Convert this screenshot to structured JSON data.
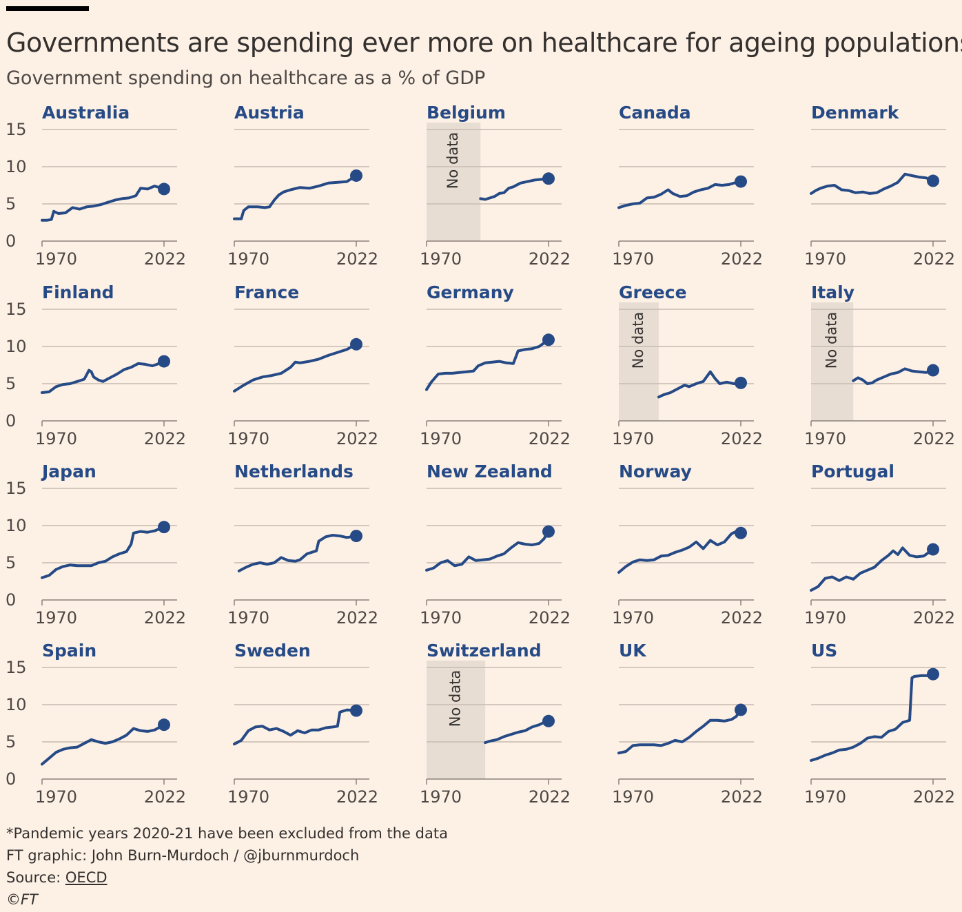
{
  "header": {
    "title": "Governments are spending ever more on healthcare for ageing populations",
    "subtitle": "Government spending on healthcare as a % of GDP"
  },
  "footer": {
    "note": "*Pandemic years 2020-21 have been excluded from the data",
    "credit": "FT graphic: John Burn-Murdoch / @jburnmurdoch",
    "source_label": "Source: ",
    "source_link": "OECD",
    "copyright": "©FT"
  },
  "colors": {
    "line": "#264a86",
    "background": "#fdf1e6",
    "gridline": "#c7bbb0",
    "no_data_band": "#e7ddd3"
  },
  "chart_data": {
    "type": "line",
    "layout": "small-multiples",
    "columns": 5,
    "x_range": [
      1970,
      2022
    ],
    "x_tick_labels": [
      "1970",
      "2022"
    ],
    "y_range": [
      0,
      15
    ],
    "y_ticks": [
      0,
      5,
      10,
      15
    ],
    "grid": true,
    "no_data_label": "No data",
    "end_marker": "dot",
    "panels": [
      {
        "name": "Australia",
        "x": [
          1970,
          1972,
          1974,
          1975,
          1977,
          1980,
          1983,
          1986,
          1989,
          1992,
          1995,
          1998,
          2001,
          2004,
          2007,
          2010,
          2012,
          2015,
          2018,
          2022
        ],
        "y": [
          2.8,
          2.8,
          2.9,
          4.0,
          3.7,
          3.8,
          4.5,
          4.3,
          4.6,
          4.7,
          4.9,
          5.2,
          5.5,
          5.7,
          5.8,
          6.1,
          7.1,
          7.0,
          7.4,
          7.0
        ]
      },
      {
        "name": "Austria",
        "x": [
          1970,
          1973,
          1974,
          1976,
          1980,
          1983,
          1985,
          1987,
          1989,
          1991,
          1994,
          1998,
          2002,
          2006,
          2010,
          2014,
          2018,
          2022
        ],
        "y": [
          3.0,
          3.0,
          4.1,
          4.6,
          4.6,
          4.5,
          4.6,
          5.5,
          6.2,
          6.6,
          6.9,
          7.2,
          7.1,
          7.4,
          7.8,
          7.9,
          8.0,
          8.8
        ]
      },
      {
        "name": "Belgium",
        "no_data_until": 1993,
        "x": [
          1993,
          1995,
          1997,
          1999,
          2001,
          2003,
          2005,
          2007,
          2010,
          2013,
          2016,
          2019,
          2022
        ],
        "y": [
          5.7,
          5.6,
          5.8,
          6.0,
          6.4,
          6.5,
          7.1,
          7.3,
          7.8,
          8.0,
          8.2,
          8.3,
          8.4
        ]
      },
      {
        "name": "Canada",
        "x": [
          1970,
          1973,
          1976,
          1979,
          1982,
          1985,
          1988,
          1991,
          1993,
          1996,
          1999,
          2002,
          2005,
          2008,
          2011,
          2014,
          2017,
          2019,
          2022
        ],
        "y": [
          4.5,
          4.8,
          5.0,
          5.1,
          5.8,
          5.9,
          6.3,
          6.9,
          6.4,
          6.0,
          6.1,
          6.6,
          6.9,
          7.1,
          7.6,
          7.5,
          7.6,
          7.8,
          8.0
        ]
      },
      {
        "name": "Denmark",
        "x": [
          1970,
          1972,
          1974,
          1977,
          1980,
          1983,
          1986,
          1989,
          1992,
          1995,
          1998,
          2001,
          2004,
          2007,
          2010,
          2013,
          2016,
          2019,
          2022
        ],
        "y": [
          6.4,
          6.8,
          7.1,
          7.4,
          7.5,
          6.9,
          6.8,
          6.5,
          6.6,
          6.4,
          6.5,
          7.0,
          7.4,
          7.9,
          9.0,
          8.8,
          8.6,
          8.5,
          8.1
        ]
      },
      {
        "name": "Finland",
        "x": [
          1970,
          1973,
          1976,
          1979,
          1982,
          1985,
          1988,
          1990,
          1991,
          1992,
          1994,
          1996,
          1999,
          2002,
          2005,
          2008,
          2011,
          2014,
          2017,
          2019,
          2022
        ],
        "y": [
          3.8,
          3.9,
          4.6,
          4.9,
          5.0,
          5.3,
          5.6,
          6.8,
          6.6,
          5.9,
          5.5,
          5.3,
          5.8,
          6.3,
          6.9,
          7.2,
          7.7,
          7.6,
          7.4,
          7.6,
          8.0
        ]
      },
      {
        "name": "France",
        "x": [
          1970,
          1974,
          1978,
          1982,
          1986,
          1990,
          1994,
          1996,
          1998,
          2002,
          2006,
          2010,
          2014,
          2018,
          2022
        ],
        "y": [
          4.0,
          4.8,
          5.5,
          5.9,
          6.1,
          6.4,
          7.2,
          7.9,
          7.8,
          8.0,
          8.3,
          8.8,
          9.2,
          9.6,
          10.3
        ]
      },
      {
        "name": "Germany",
        "x": [
          1970,
          1972,
          1975,
          1978,
          1981,
          1984,
          1987,
          1990,
          1992,
          1995,
          1998,
          2001,
          2004,
          2007,
          2009,
          2012,
          2015,
          2018,
          2022
        ],
        "y": [
          4.2,
          5.2,
          6.3,
          6.4,
          6.4,
          6.5,
          6.6,
          6.7,
          7.4,
          7.8,
          7.9,
          8.0,
          7.8,
          7.7,
          9.4,
          9.6,
          9.7,
          10.0,
          10.9
        ]
      },
      {
        "name": "Greece",
        "no_data_until": 1987,
        "x": [
          1987,
          1989,
          1992,
          1995,
          1998,
          2000,
          2003,
          2006,
          2009,
          2011,
          2013,
          2016,
          2019,
          2022
        ],
        "y": [
          3.2,
          3.5,
          3.8,
          4.3,
          4.8,
          4.6,
          5.0,
          5.3,
          6.6,
          5.7,
          5.0,
          5.2,
          5.0,
          5.1
        ]
      },
      {
        "name": "Italy",
        "no_data_until": 1988,
        "x": [
          1988,
          1990,
          1992,
          1994,
          1996,
          1998,
          2001,
          2004,
          2007,
          2010,
          2013,
          2016,
          2019,
          2022
        ],
        "y": [
          5.4,
          5.8,
          5.5,
          5.0,
          5.1,
          5.5,
          5.9,
          6.3,
          6.5,
          7.0,
          6.7,
          6.6,
          6.5,
          6.8
        ]
      },
      {
        "name": "Japan",
        "x": [
          1970,
          1973,
          1976,
          1979,
          1982,
          1985,
          1988,
          1991,
          1994,
          1997,
          2000,
          2003,
          2006,
          2008,
          2009,
          2012,
          2015,
          2018,
          2022
        ],
        "y": [
          3.0,
          3.3,
          4.1,
          4.5,
          4.7,
          4.6,
          4.6,
          4.6,
          5.0,
          5.2,
          5.8,
          6.2,
          6.5,
          7.5,
          9.0,
          9.2,
          9.1,
          9.3,
          9.8
        ]
      },
      {
        "name": "Netherlands",
        "x": [
          1972,
          1975,
          1978,
          1981,
          1984,
          1987,
          1990,
          1993,
          1996,
          1998,
          2001,
          2005,
          2006,
          2009,
          2012,
          2015,
          2018,
          2022
        ],
        "y": [
          3.9,
          4.4,
          4.8,
          5.0,
          4.8,
          5.0,
          5.7,
          5.3,
          5.2,
          5.4,
          6.2,
          6.6,
          7.9,
          8.5,
          8.7,
          8.6,
          8.4,
          8.6
        ]
      },
      {
        "name": "New Zealand",
        "x": [
          1970,
          1973,
          1976,
          1979,
          1982,
          1985,
          1988,
          1991,
          1994,
          1997,
          2000,
          2003,
          2006,
          2009,
          2012,
          2015,
          2018,
          2020,
          2022
        ],
        "y": [
          4.0,
          4.3,
          5.0,
          5.3,
          4.6,
          4.8,
          5.8,
          5.3,
          5.4,
          5.5,
          5.9,
          6.2,
          7.0,
          7.7,
          7.5,
          7.4,
          7.6,
          8.2,
          9.2
        ]
      },
      {
        "name": "Norway",
        "x": [
          1970,
          1973,
          1976,
          1979,
          1982,
          1985,
          1988,
          1991,
          1994,
          1997,
          2000,
          2003,
          2006,
          2009,
          2012,
          2015,
          2018,
          2020,
          2022
        ],
        "y": [
          3.7,
          4.5,
          5.1,
          5.4,
          5.3,
          5.4,
          5.9,
          6.0,
          6.4,
          6.7,
          7.1,
          7.8,
          6.9,
          8.0,
          7.4,
          7.8,
          8.9,
          9.2,
          9.0
        ]
      },
      {
        "name": "Portugal",
        "x": [
          1970,
          1973,
          1976,
          1979,
          1982,
          1985,
          1988,
          1991,
          1994,
          1997,
          2000,
          2003,
          2005,
          2007,
          2009,
          2012,
          2015,
          2018,
          2022
        ],
        "y": [
          1.3,
          1.8,
          2.9,
          3.1,
          2.6,
          3.1,
          2.8,
          3.6,
          4.0,
          4.4,
          5.3,
          6.0,
          6.6,
          6.1,
          7.0,
          6.0,
          5.8,
          5.9,
          6.8
        ]
      },
      {
        "name": "Spain",
        "x": [
          1970,
          1973,
          1976,
          1979,
          1982,
          1985,
          1988,
          1991,
          1994,
          1997,
          2000,
          2003,
          2006,
          2009,
          2012,
          2015,
          2018,
          2022
        ],
        "y": [
          2.0,
          2.8,
          3.6,
          4.0,
          4.2,
          4.3,
          4.8,
          5.3,
          5.0,
          4.8,
          5.0,
          5.4,
          5.9,
          6.8,
          6.5,
          6.4,
          6.6,
          7.3
        ]
      },
      {
        "name": "Sweden",
        "x": [
          1970,
          1973,
          1976,
          1979,
          1982,
          1985,
          1988,
          1991,
          1994,
          1997,
          2000,
          2003,
          2006,
          2009,
          2012,
          2014,
          2015,
          2018,
          2022
        ],
        "y": [
          4.7,
          5.2,
          6.5,
          7.0,
          7.1,
          6.6,
          6.8,
          6.4,
          5.9,
          6.5,
          6.2,
          6.6,
          6.6,
          6.9,
          7.0,
          7.1,
          9.0,
          9.3,
          9.2
        ]
      },
      {
        "name": "Switzerland",
        "no_data_until": 1995,
        "x": [
          1995,
          1997,
          2000,
          2003,
          2006,
          2009,
          2012,
          2015,
          2018,
          2020,
          2022
        ],
        "y": [
          4.9,
          5.1,
          5.3,
          5.7,
          6.0,
          6.3,
          6.5,
          7.0,
          7.3,
          7.6,
          7.8
        ]
      },
      {
        "name": "UK",
        "x": [
          1970,
          1973,
          1976,
          1979,
          1982,
          1985,
          1988,
          1991,
          1994,
          1997,
          2000,
          2003,
          2006,
          2009,
          2012,
          2015,
          2018,
          2020,
          2022
        ],
        "y": [
          3.5,
          3.7,
          4.5,
          4.6,
          4.6,
          4.6,
          4.5,
          4.8,
          5.2,
          5.0,
          5.6,
          6.4,
          7.1,
          7.9,
          7.9,
          7.8,
          8.0,
          8.4,
          9.3
        ]
      },
      {
        "name": "US",
        "x": [
          1970,
          1973,
          1976,
          1979,
          1982,
          1985,
          1988,
          1991,
          1994,
          1997,
          2000,
          2003,
          2006,
          2009,
          2012,
          2013,
          2014,
          2017,
          2020,
          2022
        ],
        "y": [
          2.5,
          2.8,
          3.2,
          3.5,
          3.9,
          4.0,
          4.3,
          4.8,
          5.5,
          5.7,
          5.6,
          6.4,
          6.7,
          7.6,
          7.9,
          13.6,
          13.8,
          13.9,
          13.9,
          14.1
        ]
      }
    ]
  }
}
